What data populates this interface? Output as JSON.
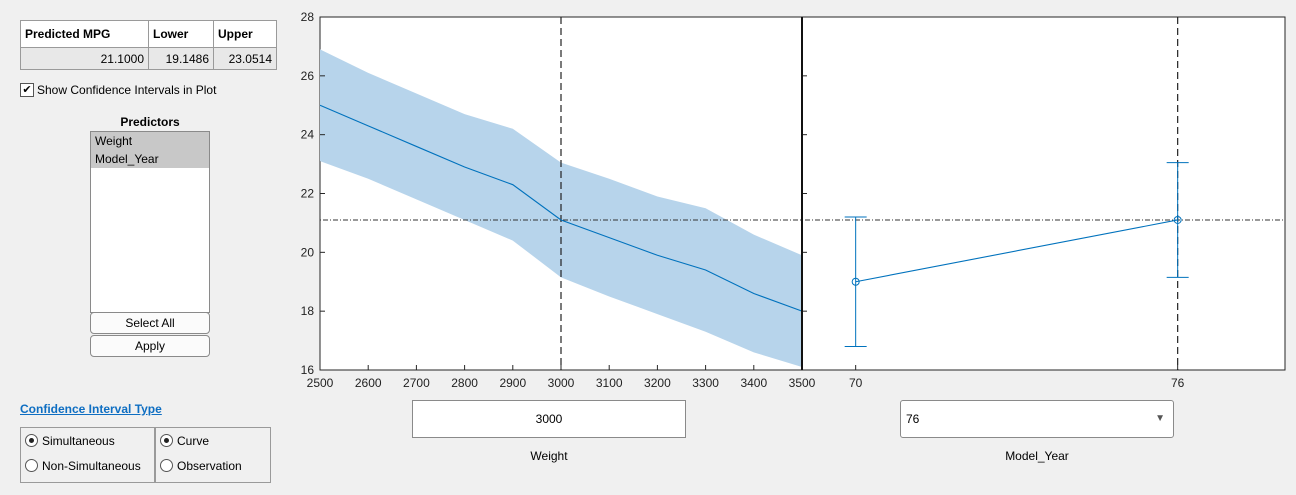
{
  "prediction_table": {
    "headers": [
      "Predicted MPG",
      "Lower",
      "Upper"
    ],
    "row": [
      "21.1000",
      "19.1486",
      "23.0514"
    ]
  },
  "show_ci": {
    "label": "Show Confidence Intervals in Plot",
    "checked": true
  },
  "predictors": {
    "title": "Predictors",
    "items": [
      "Weight",
      "Model_Year"
    ],
    "select_all_label": "Select All",
    "apply_label": "Apply"
  },
  "ci_type": {
    "title": "Confidence Interval Type",
    "group1": [
      "Simultaneous",
      "Non-Simultaneous"
    ],
    "group1_selected": "Simultaneous",
    "group2": [
      "Curve",
      "Observation"
    ],
    "group2_selected": "Curve"
  },
  "controls": {
    "weight_value": "3000",
    "weight_label": "Weight",
    "model_year_value": "76",
    "model_year_label": "Model_Year"
  },
  "colors": {
    "line": "#0072bd",
    "band": "#b7d4eb",
    "link": "#0e6ec2"
  },
  "chart_data": [
    {
      "type": "line",
      "x": [
        2500,
        2600,
        2700,
        2800,
        2900,
        3000,
        3100,
        3200,
        3300,
        3400,
        3500
      ],
      "y": [
        25.0,
        24.3,
        23.6,
        22.9,
        22.3,
        21.1,
        20.5,
        19.9,
        19.4,
        18.6,
        18.0
      ],
      "lower": [
        23.1,
        22.5,
        21.8,
        21.1,
        20.4,
        19.15,
        18.5,
        17.9,
        17.3,
        16.6,
        16.1
      ],
      "upper": [
        26.9,
        26.1,
        25.4,
        24.7,
        24.2,
        23.05,
        22.5,
        21.9,
        21.5,
        20.6,
        19.9
      ],
      "xlim": [
        2500,
        3500
      ],
      "ylim": [
        16,
        28
      ],
      "xticks": [
        "2500",
        "2600",
        "2700",
        "2800",
        "2900",
        "3000",
        "3100",
        "3200",
        "3300",
        "3400",
        "3500"
      ],
      "yticks": [
        "16",
        "18",
        "20",
        "22",
        "24",
        "26",
        "28"
      ],
      "current_x": 3000,
      "reference_y": 21.1
    },
    {
      "type": "line",
      "x": [
        70,
        76
      ],
      "y": [
        19.0,
        21.1
      ],
      "lower": [
        16.8,
        19.15
      ],
      "upper": [
        21.2,
        23.05
      ],
      "xlim": [
        69,
        78
      ],
      "ylim": [
        16,
        28
      ],
      "xticks": [
        "70",
        "76"
      ],
      "current_x": 76,
      "reference_y": 21.1
    }
  ]
}
